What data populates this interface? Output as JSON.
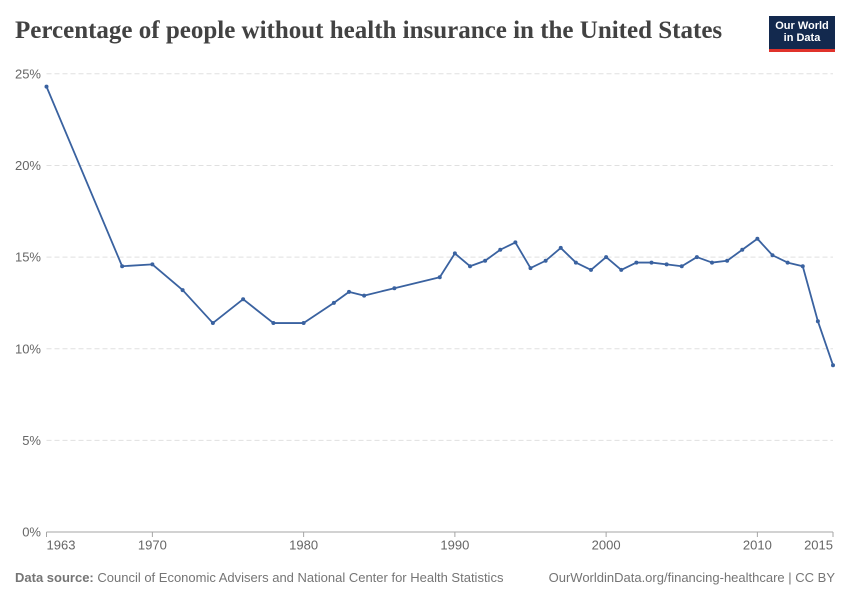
{
  "header": {
    "title": "Percentage of people without health insurance in the United States"
  },
  "logo": {
    "line1": "Our World",
    "line2": "in Data",
    "bg_color": "#13294e",
    "bar_color": "#e0322b",
    "text_color": "#ffffff"
  },
  "chart_data": {
    "type": "line",
    "title": "Percentage of people without health insurance in the United States",
    "xlabel": "",
    "ylabel": "",
    "x": [
      1963,
      1968,
      1970,
      1972,
      1974,
      1976,
      1978,
      1980,
      1982,
      1983,
      1984,
      1986,
      1989,
      1990,
      1991,
      1992,
      1993,
      1994,
      1995,
      1996,
      1997,
      1998,
      1999,
      2000,
      2001,
      2002,
      2003,
      2004,
      2005,
      2006,
      2007,
      2008,
      2009,
      2010,
      2011,
      2012,
      2013,
      2014,
      2015
    ],
    "values": [
      24.3,
      14.5,
      14.6,
      13.2,
      11.4,
      12.7,
      11.4,
      11.4,
      12.5,
      13.1,
      12.9,
      13.3,
      13.9,
      15.2,
      14.5,
      14.8,
      15.4,
      15.8,
      14.4,
      14.8,
      15.5,
      14.7,
      14.3,
      15.0,
      14.3,
      14.7,
      14.7,
      14.6,
      14.5,
      15.0,
      14.7,
      14.8,
      15.4,
      16.0,
      15.1,
      14.7,
      14.5,
      11.5,
      9.1
    ],
    "xlim": [
      1963,
      2015
    ],
    "ylim": [
      0,
      25
    ],
    "x_ticks": [
      1963,
      1970,
      1980,
      1990,
      2000,
      2010,
      2015
    ],
    "y_ticks": [
      0,
      5,
      10,
      15,
      20,
      25
    ],
    "y_tick_suffix": "%",
    "grid": true,
    "legend_position": "none",
    "line_color": "#3a62a0",
    "grid_color": "#e0e0e0",
    "axis_color": "#a5a5a5",
    "tick_label_color": "#666666"
  },
  "footer": {
    "data_source_label": "Data source:",
    "data_source_text": " Council of Economic Advisers and National Center for Health Statistics",
    "attribution": "OurWorldinData.org/financing-healthcare | CC BY"
  }
}
